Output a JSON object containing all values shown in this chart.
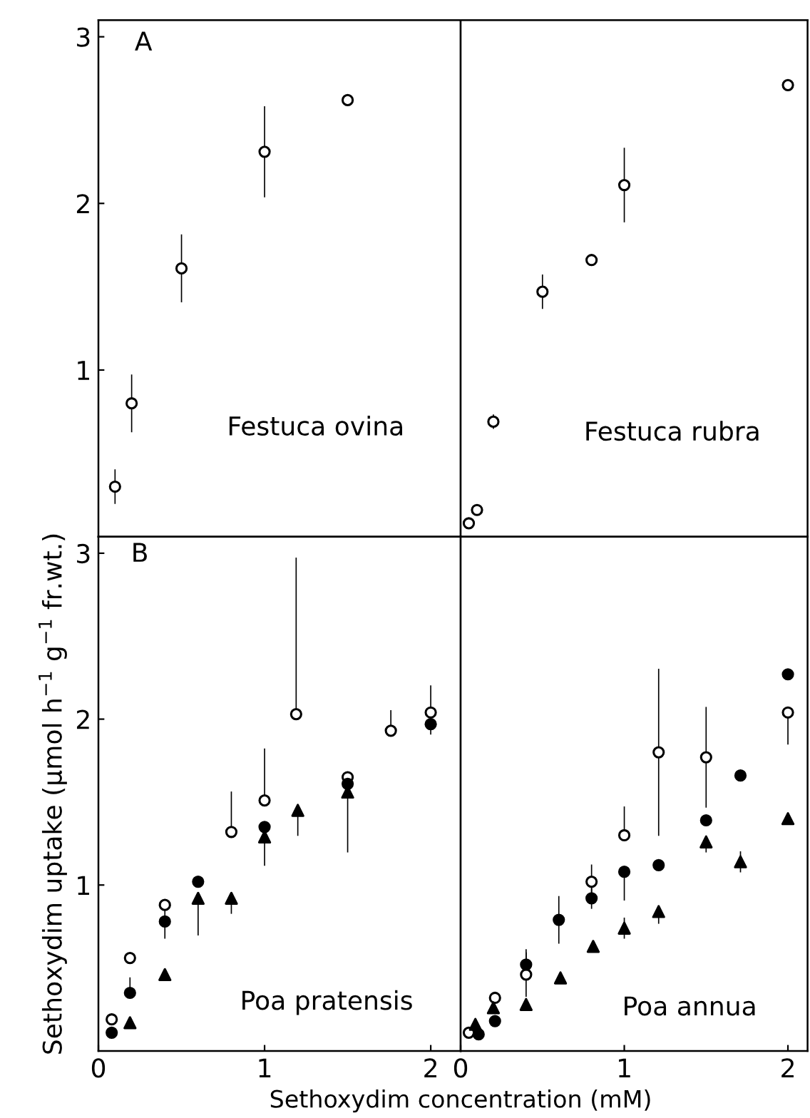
{
  "chart_data": [
    {
      "type": "scatter",
      "annotations": [
        "A",
        "Festuca ovina"
      ],
      "xlim": [
        0,
        2.18
      ],
      "ylim": [
        0,
        3.1
      ],
      "xticks": [
        0,
        1,
        2
      ],
      "yticks": [
        1,
        2,
        3
      ],
      "tick_labels": "y",
      "grid": false,
      "legend": false,
      "series": [
        {
          "color": "#ffffff",
          "marker": "circle",
          "x": [
            0.1,
            0.2,
            0.5,
            1.0,
            1.5
          ],
          "values": [
            0.3,
            0.8,
            1.61,
            2.31,
            2.62
          ],
          "errors": [
            0.1,
            0.17,
            0.2,
            0.27,
            null
          ]
        }
      ]
    },
    {
      "type": "scatter",
      "annotations": [
        "Festuca rubra"
      ],
      "xlim": [
        0,
        2.12
      ],
      "ylim": [
        0,
        3.1
      ],
      "xticks": [
        0,
        1,
        2
      ],
      "tick_labels": false,
      "grid": false,
      "legend": false,
      "series": [
        {
          "color": "#ffffff",
          "marker": "circle",
          "x": [
            0.05,
            0.1,
            0.2,
            0.5,
            0.8,
            1.0,
            2.0
          ],
          "values": [
            0.08,
            0.16,
            0.69,
            1.47,
            1.66,
            2.11,
            2.71
          ],
          "errors": [
            null,
            null,
            0.04,
            0.1,
            null,
            0.22,
            null
          ]
        }
      ]
    },
    {
      "type": "scatter",
      "annotations": [
        "B",
        "Poa pratensis"
      ],
      "ylabel": "Sethoxydim uptake (µmol h$^{−1}$ g$^{−1}$ fr.wt.)",
      "xlabel": "Sethoxydim concentration (mM)",
      "xlim": [
        0,
        2.18
      ],
      "ylim": [
        0,
        3.1
      ],
      "xticks": [
        0,
        1,
        2
      ],
      "yticks": [
        1,
        2,
        3
      ],
      "grid": false,
      "legend": false,
      "series": [
        {
          "color": "#ffffff",
          "marker": "circle",
          "x": [
            0.08,
            0.19,
            0.4,
            0.8,
            1.0,
            1.19,
            1.5,
            1.76,
            2.0
          ],
          "values": [
            0.19,
            0.56,
            0.88,
            1.32,
            1.51,
            2.03,
            1.65,
            1.93,
            2.04
          ],
          "errors": [
            null,
            null,
            null,
            [
              1.32,
              1.56
            ],
            [
              1.51,
              1.82
            ],
            [
              2.03,
              2.97
            ],
            null,
            [
              1.93,
              2.05
            ],
            [
              2.04,
              2.2
            ]
          ]
        },
        {
          "color": "#000000",
          "marker": "circle",
          "x": [
            0.08,
            0.19,
            0.4,
            0.6,
            1.0,
            1.5,
            2.0
          ],
          "values": [
            0.11,
            0.35,
            0.78,
            1.02,
            1.35,
            1.61,
            1.97
          ],
          "errors": [
            null,
            [
              0.35,
              0.44
            ],
            0.1,
            null,
            [
              1.12,
              1.35
            ],
            null,
            [
              1.91,
              1.97
            ]
          ]
        },
        {
          "color": "#000000",
          "marker": "triangle",
          "x": [
            0.19,
            0.4,
            0.6,
            0.8,
            1.0,
            1.2,
            1.5
          ],
          "values": [
            0.17,
            0.46,
            0.92,
            0.92,
            1.29,
            1.45,
            1.56
          ],
          "errors": [
            null,
            null,
            [
              0.7,
              0.92
            ],
            [
              0.83,
              0.92
            ],
            null,
            [
              1.3,
              1.45
            ],
            [
              1.2,
              1.56
            ]
          ]
        }
      ]
    },
    {
      "type": "scatter",
      "annotations": [
        "Poa annua"
      ],
      "xlim": [
        0,
        2.12
      ],
      "ylim": [
        0,
        3.1
      ],
      "xticks": [
        0,
        1,
        2
      ],
      "tick_labels": "x",
      "grid": false,
      "legend": false,
      "series": [
        {
          "color": "#ffffff",
          "marker": "circle",
          "x": [
            0.05,
            0.21,
            0.4,
            0.8,
            1.0,
            1.21,
            1.5,
            2.0
          ],
          "values": [
            0.11,
            0.32,
            0.46,
            1.02,
            1.3,
            1.8,
            1.77,
            2.04
          ],
          "errors": [
            null,
            null,
            0.13,
            0.1,
            [
              1.3,
              1.47
            ],
            0.5,
            0.3,
            [
              1.85,
              2.04
            ]
          ]
        },
        {
          "color": "#000000",
          "marker": "circle",
          "x": [
            0.11,
            0.21,
            0.4,
            0.6,
            0.8,
            1.0,
            1.21,
            1.5,
            1.71,
            2.0
          ],
          "values": [
            0.1,
            0.18,
            0.52,
            0.79,
            0.92,
            1.08,
            1.12,
            1.39,
            1.66,
            2.27
          ],
          "errors": [
            null,
            null,
            [
              0.52,
              0.61
            ],
            0.14,
            0.06,
            [
              0.91,
              1.08
            ],
            null,
            null,
            null,
            null
          ]
        },
        {
          "color": "#000000",
          "marker": "triangle",
          "x": [
            0.09,
            0.2,
            0.4,
            0.61,
            0.81,
            1.0,
            1.21,
            1.5,
            1.71,
            2.0
          ],
          "values": [
            0.16,
            0.26,
            0.28,
            0.44,
            0.63,
            0.74,
            0.84,
            1.26,
            1.14,
            1.4
          ],
          "errors": [
            null,
            null,
            null,
            null,
            null,
            0.06,
            [
              0.77,
              0.84
            ],
            [
              1.2,
              1.26
            ],
            0.06,
            null
          ]
        }
      ]
    }
  ]
}
